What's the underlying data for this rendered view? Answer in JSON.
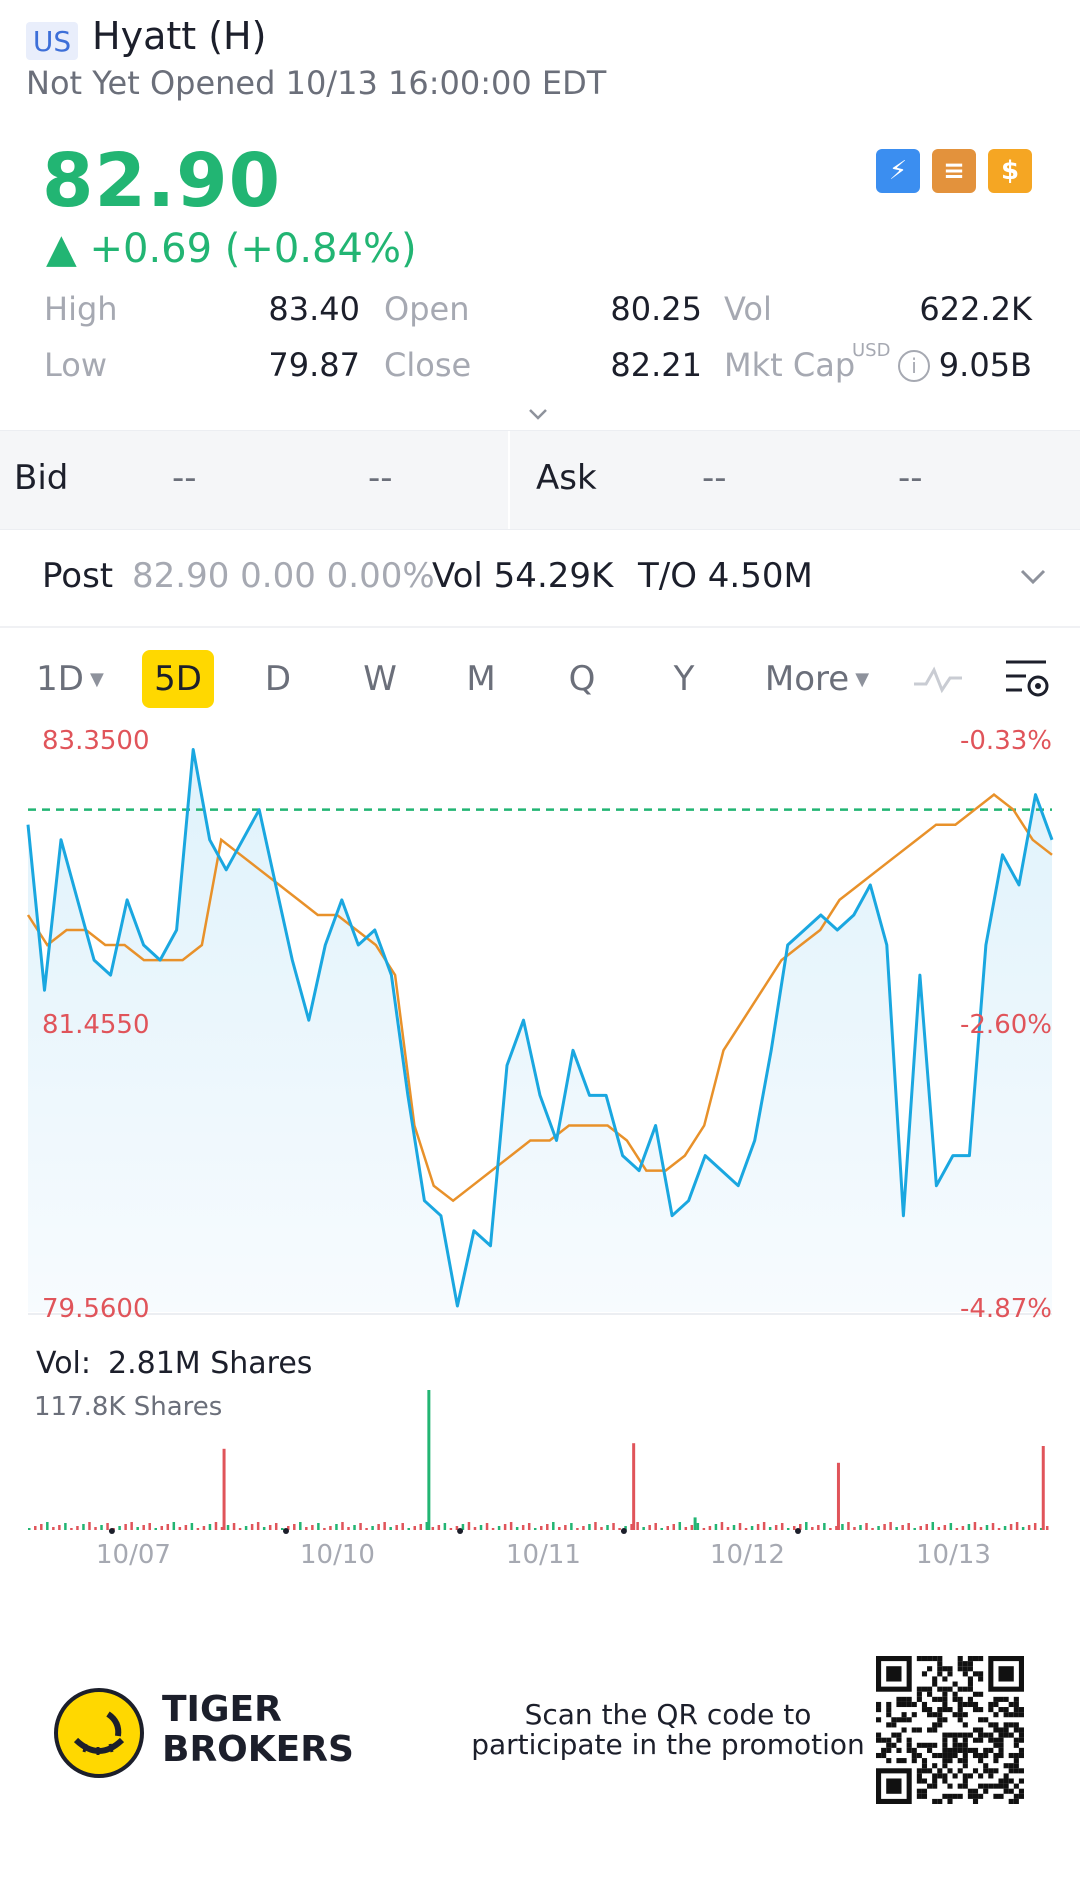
{
  "header": {
    "market": "US",
    "title": "Hyatt (H)",
    "status": "Not Yet Opened 10/13 16:00:00 EDT"
  },
  "quote": {
    "price": "82.90",
    "change": "▲ +0.69 (+0.84%)",
    "up_color": "#22b573",
    "icons": [
      "lightning-icon",
      "stack-icon",
      "dollar-icon"
    ],
    "icon_glyphs": [
      "⚡",
      "≡",
      "$"
    ],
    "stats": {
      "high_label": "High",
      "high": "83.40",
      "open_label": "Open",
      "open": "80.25",
      "vol_label": "Vol",
      "vol": "622.2K",
      "low_label": "Low",
      "low": "79.87",
      "close_label": "Close",
      "close": "82.21",
      "mktcap_label": "Mkt Cap",
      "mktcap_unit": "USD",
      "mktcap": "9.05B"
    }
  },
  "bidask": {
    "bid_label": "Bid",
    "bid_size": "--",
    "bid_price": "--",
    "ask_label": "Ask",
    "ask_size": "--",
    "ask_price": "--"
  },
  "post": {
    "label": "Post",
    "values": "82.90 0.00 0.00%",
    "vol": "Vol  54.29K",
    "turnover": "T/O 4.50M"
  },
  "periods": [
    {
      "label": "1D",
      "dropdown": true
    },
    {
      "label": "5D",
      "active": true
    },
    {
      "label": "D"
    },
    {
      "label": "W"
    },
    {
      "label": "M"
    },
    {
      "label": "Q"
    },
    {
      "label": "Y"
    },
    {
      "label": "More",
      "dropdown": true
    }
  ],
  "chart_data": {
    "type": "line",
    "y_left_ticks": [
      "83.3500",
      "81.4550",
      "79.5600"
    ],
    "y_right_ticks": [
      "-0.33%",
      "-2.60%",
      "-4.87%"
    ],
    "ylim": [
      79.56,
      83.35
    ],
    "prev_close": 82.9,
    "x_ticks": [
      "10/07",
      "10/10",
      "10/11",
      "10/12",
      "10/13"
    ],
    "line_color": "#1aa7e0",
    "avg_color": "#e8912a",
    "price_series": [
      82.8,
      81.7,
      82.7,
      82.3,
      81.9,
      81.8,
      82.3,
      82.0,
      81.9,
      82.1,
      83.3,
      82.7,
      82.5,
      82.7,
      82.9,
      82.4,
      81.9,
      81.5,
      82.0,
      82.3,
      82.0,
      82.1,
      81.8,
      81.0,
      80.3,
      80.2,
      79.6,
      80.1,
      80.0,
      81.2,
      81.5,
      81.0,
      80.7,
      81.3,
      81.0,
      81.0,
      80.6,
      80.5,
      80.8,
      80.2,
      80.3,
      80.6,
      80.5,
      80.4,
      80.7,
      81.3,
      82.0,
      82.1,
      82.2,
      82.1,
      82.2,
      82.4,
      82.0,
      80.2,
      81.8,
      80.4,
      80.6,
      80.6,
      82.0,
      82.6,
      82.4,
      83.0,
      82.7
    ],
    "avg_series": [
      82.2,
      82.0,
      82.1,
      82.1,
      82.0,
      82.0,
      81.9,
      81.9,
      81.9,
      82.0,
      82.7,
      82.6,
      82.5,
      82.4,
      82.3,
      82.2,
      82.2,
      82.1,
      82.0,
      81.8,
      80.8,
      80.4,
      80.3,
      80.4,
      80.5,
      80.6,
      80.7,
      80.7,
      80.8,
      80.8,
      80.8,
      80.7,
      80.5,
      80.5,
      80.6,
      80.8,
      81.3,
      81.5,
      81.7,
      81.9,
      82.0,
      82.1,
      82.3,
      82.4,
      82.5,
      82.6,
      82.7,
      82.8,
      82.8,
      82.9,
      83.0,
      82.9,
      82.7,
      82.6
    ],
    "volume_label": "Vol:",
    "volume_total": "2.81M Shares",
    "volume_scale": "117.8K Shares",
    "volume_spikes": [
      {
        "pos": 0.19,
        "h": 0.58,
        "color": "#e0545a"
      },
      {
        "pos": 0.39,
        "h": 1.0,
        "color": "#22b573"
      },
      {
        "pos": 0.59,
        "h": 0.62,
        "color": "#e0545a"
      },
      {
        "pos": 0.65,
        "h": 0.09,
        "color": "#22b573"
      },
      {
        "pos": 0.79,
        "h": 0.48,
        "color": "#e0545a"
      },
      {
        "pos": 0.99,
        "h": 0.6,
        "color": "#e0545a"
      }
    ]
  },
  "footer": {
    "brand_line1": "TIGER",
    "brand_line2": "BROKERS",
    "scan_line1": "Scan the QR code to",
    "scan_line2": "participate in the promotion"
  }
}
